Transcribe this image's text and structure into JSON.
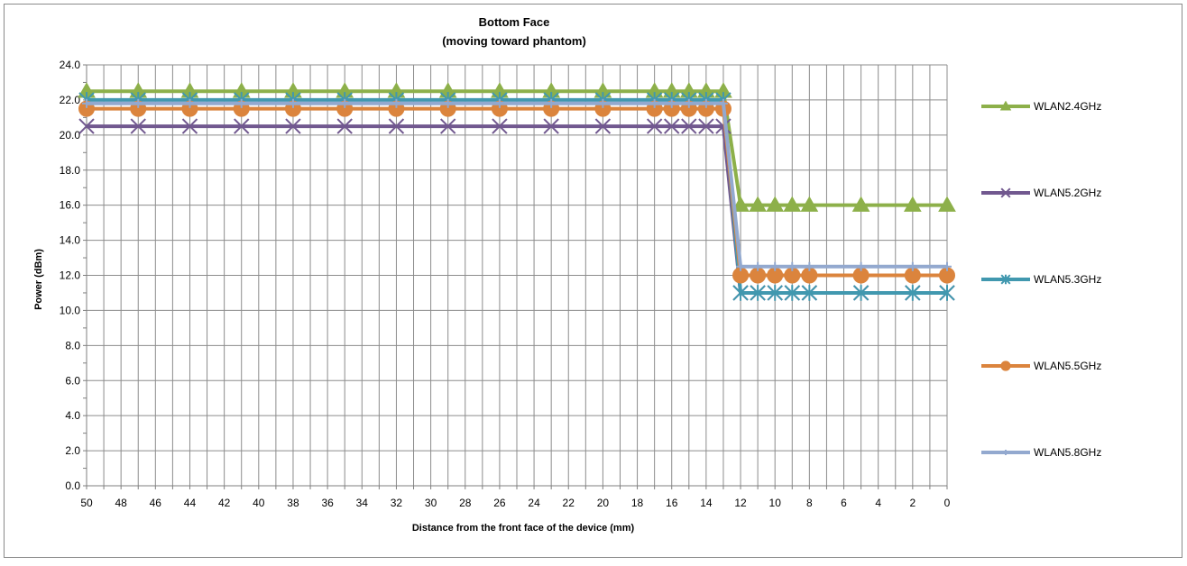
{
  "chart_data": {
    "type": "line",
    "title": "Bottom Face",
    "subtitle": "(moving toward phantom)",
    "xlabel": "Distance from the front face of the device (mm)",
    "ylabel": "Power (dBm)",
    "x_direction": "decreasing left to right",
    "x": [
      50,
      47,
      44,
      41,
      38,
      35,
      32,
      29,
      26,
      23,
      20,
      17,
      16,
      15,
      14,
      13,
      12,
      11,
      10,
      9,
      8,
      5,
      2,
      0
    ],
    "x_tick_labels": [
      "50",
      "48",
      "46",
      "44",
      "42",
      "40",
      "38",
      "36",
      "34",
      "32",
      "30",
      "28",
      "26",
      "24",
      "22",
      "20",
      "18",
      "16",
      "14",
      "12",
      "10",
      "8",
      "6",
      "4",
      "2",
      "0"
    ],
    "y_tick_labels": [
      "0.0",
      "2.0",
      "4.0",
      "6.0",
      "8.0",
      "10.0",
      "12.0",
      "14.0",
      "16.0",
      "18.0",
      "20.0",
      "22.0",
      "24.0"
    ],
    "ylim": [
      0,
      24
    ],
    "xlim": [
      0,
      50
    ],
    "grid": true,
    "legend_position": "right",
    "series": [
      {
        "name": "WLAN2.4GHz",
        "color": "#8db04a",
        "marker": "triangle",
        "values": [
          22.5,
          22.5,
          22.5,
          22.5,
          22.5,
          22.5,
          22.5,
          22.5,
          22.5,
          22.5,
          22.5,
          22.5,
          22.5,
          22.5,
          22.5,
          22.5,
          16.0,
          16.0,
          16.0,
          16.0,
          16.0,
          16.0,
          16.0,
          16.0
        ]
      },
      {
        "name": "WLAN5.2GHz",
        "color": "#71588f",
        "marker": "x",
        "values": [
          20.5,
          20.5,
          20.5,
          20.5,
          20.5,
          20.5,
          20.5,
          20.5,
          20.5,
          20.5,
          20.5,
          20.5,
          20.5,
          20.5,
          20.5,
          20.5,
          11.0,
          11.0,
          11.0,
          11.0,
          11.0,
          11.0,
          11.0,
          11.0
        ]
      },
      {
        "name": "WLAN5.3GHz",
        "color": "#4198af",
        "marker": "star",
        "values": [
          22.0,
          22.0,
          22.0,
          22.0,
          22.0,
          22.0,
          22.0,
          22.0,
          22.0,
          22.0,
          22.0,
          22.0,
          22.0,
          22.0,
          22.0,
          22.0,
          11.0,
          11.0,
          11.0,
          11.0,
          11.0,
          11.0,
          11.0,
          11.0
        ]
      },
      {
        "name": "WLAN5.5GHz",
        "color": "#db843d",
        "marker": "circle",
        "values": [
          21.5,
          21.5,
          21.5,
          21.5,
          21.5,
          21.5,
          21.5,
          21.5,
          21.5,
          21.5,
          21.5,
          21.5,
          21.5,
          21.5,
          21.5,
          21.5,
          12.0,
          12.0,
          12.0,
          12.0,
          12.0,
          12.0,
          12.0,
          12.0
        ]
      },
      {
        "name": "WLAN5.8GHz",
        "color": "#93a9cf",
        "marker": "plus",
        "values": [
          21.8,
          21.8,
          21.8,
          21.8,
          21.8,
          21.8,
          21.8,
          21.8,
          21.8,
          21.8,
          21.8,
          21.8,
          21.8,
          21.8,
          21.8,
          21.8,
          12.5,
          12.5,
          12.5,
          12.5,
          12.5,
          12.5,
          12.5,
          12.5
        ]
      }
    ]
  }
}
